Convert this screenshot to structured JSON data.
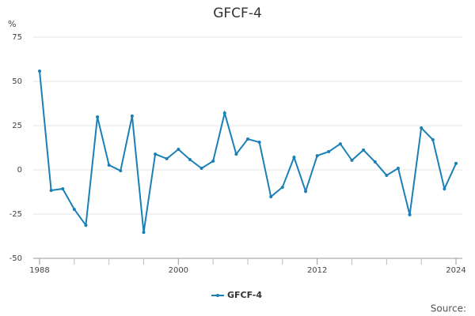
{
  "chart_data": {
    "type": "line",
    "title": "GFCF-4",
    "y_unit": "%",
    "source": "Source:",
    "x": [
      1988,
      1989,
      1990,
      1991,
      1992,
      1993,
      1994,
      1995,
      1996,
      1997,
      1998,
      1999,
      2000,
      2001,
      2002,
      2003,
      2004,
      2005,
      2006,
      2007,
      2008,
      2009,
      2010,
      2011,
      2012,
      2013,
      2014,
      2015,
      2016,
      2017,
      2018,
      2019,
      2020,
      2021,
      2022,
      2023,
      2024
    ],
    "series": [
      {
        "name": "GFCF-4",
        "color": "#1a80b6",
        "values": [
          55.8,
          -11.6,
          -10.7,
          -22.3,
          -31.3,
          29.9,
          2.7,
          -0.5,
          30.4,
          -35.3,
          8.9,
          6.3,
          11.6,
          5.8,
          0.9,
          4.9,
          32.1,
          8.9,
          17.4,
          15.6,
          -15.2,
          -9.8,
          7.1,
          -12.1,
          8.0,
          10.3,
          14.7,
          5.4,
          11.2,
          4.5,
          -3.1,
          0.9,
          -25.4,
          23.7,
          17.0,
          -10.7,
          3.6
        ]
      }
    ],
    "xlim": [
      1988,
      2024
    ],
    "xticks": [
      1988,
      2000,
      2012,
      2024
    ],
    "xminorticks": [
      1991,
      1994,
      1997,
      2003,
      2006,
      2009,
      2015,
      2018,
      2021
    ],
    "ylim": [
      -50,
      75
    ],
    "yticks": [
      -50,
      -25,
      0,
      25,
      50,
      75
    ],
    "grid": true,
    "legend": "bottom"
  }
}
